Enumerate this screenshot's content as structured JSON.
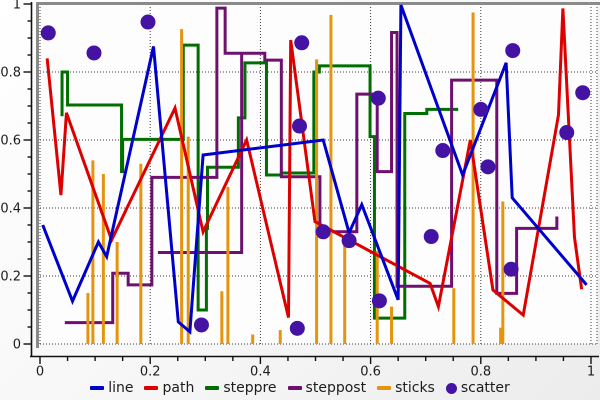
{
  "chart_data": {
    "type": "mixed",
    "xlim": [
      0,
      1
    ],
    "ylim": [
      0,
      1
    ],
    "grid": true,
    "x_tick_labels": [
      "0",
      "0.2",
      "0.4",
      "0.6",
      "0.8",
      "1"
    ],
    "y_tick_labels": [
      "0",
      "0.2",
      "0.4",
      "0.6",
      "0.8",
      "1"
    ],
    "major_tick_step": 0.2,
    "minor_tick_step": 0.05,
    "series": [
      {
        "name": "line",
        "type": "line",
        "color": "#0000cc",
        "points": [
          [
            0.005,
            0.35
          ],
          [
            0.059,
            0.126
          ],
          [
            0.106,
            0.3
          ],
          [
            0.121,
            0.257
          ],
          [
            0.206,
            0.875
          ],
          [
            0.251,
            0.065
          ],
          [
            0.272,
            0.036
          ],
          [
            0.296,
            0.556
          ],
          [
            0.514,
            0.6
          ],
          [
            0.561,
            0.327
          ],
          [
            0.584,
            0.41
          ],
          [
            0.65,
            0.13
          ],
          [
            0.655,
            0.997
          ],
          [
            0.767,
            0.497
          ],
          [
            0.846,
            0.827
          ],
          [
            0.857,
            0.43
          ],
          [
            0.992,
            0.174
          ]
        ]
      },
      {
        "name": "path",
        "type": "path",
        "color": "#dd0000",
        "points": [
          [
            0.013,
            0.84
          ],
          [
            0.038,
            0.438
          ],
          [
            0.048,
            0.68
          ],
          [
            0.13,
            0.306
          ],
          [
            0.245,
            0.694
          ],
          [
            0.296,
            0.33
          ],
          [
            0.375,
            0.6
          ],
          [
            0.451,
            0.078
          ],
          [
            0.455,
            0.894
          ],
          [
            0.499,
            0.36
          ],
          [
            0.708,
            0.178
          ],
          [
            0.723,
            0.11
          ],
          [
            0.781,
            0.6
          ],
          [
            0.822,
            0.159
          ],
          [
            0.877,
            0.085
          ],
          [
            0.941,
            0.674
          ],
          [
            0.949,
            0.987
          ],
          [
            0.97,
            0.314
          ],
          [
            0.983,
            0.161
          ]
        ]
      },
      {
        "name": "steppre",
        "type": "steppre",
        "color": "#006e00",
        "points": [
          [
            0.04,
            0.67
          ],
          [
            0.05,
            0.8
          ],
          [
            0.148,
            0.703
          ],
          [
            0.15,
            0.507
          ],
          [
            0.26,
            0.602
          ],
          [
            0.287,
            0.879
          ],
          [
            0.302,
            0.1
          ],
          [
            0.304,
            0.34
          ],
          [
            0.36,
            0.52
          ],
          [
            0.372,
            0.665
          ],
          [
            0.411,
            0.827
          ],
          [
            0.438,
            0.497
          ],
          [
            0.497,
            0.503
          ],
          [
            0.507,
            0.8
          ],
          [
            0.599,
            0.818
          ],
          [
            0.607,
            0.61
          ],
          [
            0.662,
            0.076
          ],
          [
            0.702,
            0.678
          ],
          [
            0.759,
            0.69
          ]
        ]
      },
      {
        "name": "steppost",
        "type": "steppost",
        "color": "#6e1070",
        "points": [
          [
            0.045,
            0.063
          ],
          [
            0.132,
            0.208
          ],
          [
            0.16,
            0.174
          ],
          [
            0.203,
            0.49
          ],
          [
            0.321,
            0.988
          ],
          [
            0.336,
            0.855
          ],
          [
            0.366,
            0.269
          ],
          [
            0.214,
            0.269
          ],
          [
            0.366,
            0.855
          ],
          [
            0.408,
            0.835
          ],
          [
            0.438,
            0.492
          ],
          [
            0.508,
            0.33
          ],
          [
            0.575,
            0.735
          ],
          [
            0.612,
            0.507
          ],
          [
            0.638,
            0.916
          ],
          [
            0.648,
            0.17
          ],
          [
            0.747,
            0.776
          ],
          [
            0.829,
            0.149
          ],
          [
            0.865,
            0.34
          ],
          [
            0.938,
            0.375
          ]
        ]
      },
      {
        "name": "sticks",
        "type": "sticks",
        "color": "#e5940e",
        "points": [
          [
            0.087,
            0.15
          ],
          [
            0.096,
            0.54
          ],
          [
            0.115,
            0.5
          ],
          [
            0.14,
            0.3
          ],
          [
            0.183,
            0.53
          ],
          [
            0.257,
            0.926
          ],
          [
            0.269,
            0.61
          ],
          [
            0.33,
            0.155
          ],
          [
            0.341,
            0.462
          ],
          [
            0.386,
            0.028
          ],
          [
            0.436,
            0.041
          ],
          [
            0.502,
            0.837
          ],
          [
            0.528,
            0.968
          ],
          [
            0.553,
            0.301
          ],
          [
            0.612,
            0.274
          ],
          [
            0.638,
            0.11
          ],
          [
            0.751,
            0.164
          ],
          [
            0.786,
            0.975
          ],
          [
            0.836,
            0.048
          ],
          [
            0.84,
            0.419
          ]
        ]
      },
      {
        "name": "scatter",
        "type": "scatter",
        "color": "#4413a4",
        "marker_radius": 7.5,
        "points": [
          [
            0.015,
            0.915
          ],
          [
            0.098,
            0.856
          ],
          [
            0.196,
            0.947
          ],
          [
            0.293,
            0.056
          ],
          [
            0.467,
            0.046
          ],
          [
            0.471,
            0.641
          ],
          [
            0.475,
            0.886
          ],
          [
            0.514,
            0.33
          ],
          [
            0.561,
            0.304
          ],
          [
            0.614,
            0.723
          ],
          [
            0.616,
            0.127
          ],
          [
            0.71,
            0.316
          ],
          [
            0.731,
            0.569
          ],
          [
            0.8,
            0.69
          ],
          [
            0.813,
            0.521
          ],
          [
            0.855,
            0.22
          ],
          [
            0.858,
            0.863
          ],
          [
            0.956,
            0.622
          ],
          [
            0.985,
            0.739
          ]
        ]
      }
    ],
    "draw_order": [
      "steppre",
      "steppost",
      "sticks",
      "path",
      "line",
      "scatter"
    ],
    "line_width": 3
  },
  "legend": {
    "items": [
      {
        "label": "line",
        "color": "#0000cc",
        "marker": "dash"
      },
      {
        "label": "path",
        "color": "#dd0000",
        "marker": "dash"
      },
      {
        "label": "steppre",
        "color": "#006e00",
        "marker": "dash"
      },
      {
        "label": "steppost",
        "color": "#6e1070",
        "marker": "dash"
      },
      {
        "label": "sticks",
        "color": "#e5940e",
        "marker": "dash"
      },
      {
        "label": "scatter",
        "color": "#4413a4",
        "marker": "dot"
      }
    ]
  },
  "style_colors": {
    "grid": "#3a3a3a",
    "axis": "#111111",
    "border": "#8a8a8a",
    "tick_text": "#1c1c1c",
    "plot_bg": "#fdfdfd"
  }
}
